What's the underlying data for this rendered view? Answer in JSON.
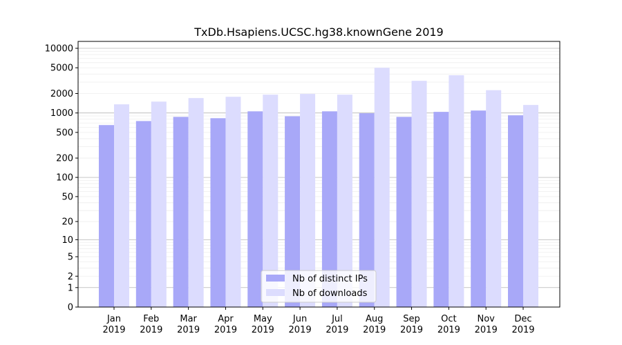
{
  "chart_data": {
    "type": "bar",
    "title": "TxDb.Hsapiens.UCSC.hg38.knownGene 2019",
    "xlabel": "",
    "ylabel": "",
    "yscale": "log(1+x)",
    "ylim": [
      0,
      10000
    ],
    "yticks": [
      0,
      1,
      2,
      5,
      10,
      20,
      50,
      100,
      200,
      500,
      1000,
      2000,
      5000,
      10000
    ],
    "grid": true,
    "legend_position": "bottom-center",
    "categories": [
      "Jan\n2019",
      "Feb\n2019",
      "Mar\n2019",
      "Apr\n2019",
      "May\n2019",
      "Jun\n2019",
      "Jul\n2019",
      "Aug\n2019",
      "Sep\n2019",
      "Oct\n2019",
      "Nov\n2019",
      "Dec\n2019"
    ],
    "series": [
      {
        "name": "Nb of distinct IPs",
        "color": "#a8a8f8",
        "values": [
          650,
          750,
          870,
          830,
          1060,
          890,
          1060,
          990,
          870,
          1040,
          1090,
          920
        ]
      },
      {
        "name": "Nb of downloads",
        "color": "#dcdcfe",
        "values": [
          1360,
          1500,
          1700,
          1780,
          1920,
          1970,
          1920,
          5000,
          3140,
          3830,
          2250,
          1330
        ]
      }
    ]
  }
}
